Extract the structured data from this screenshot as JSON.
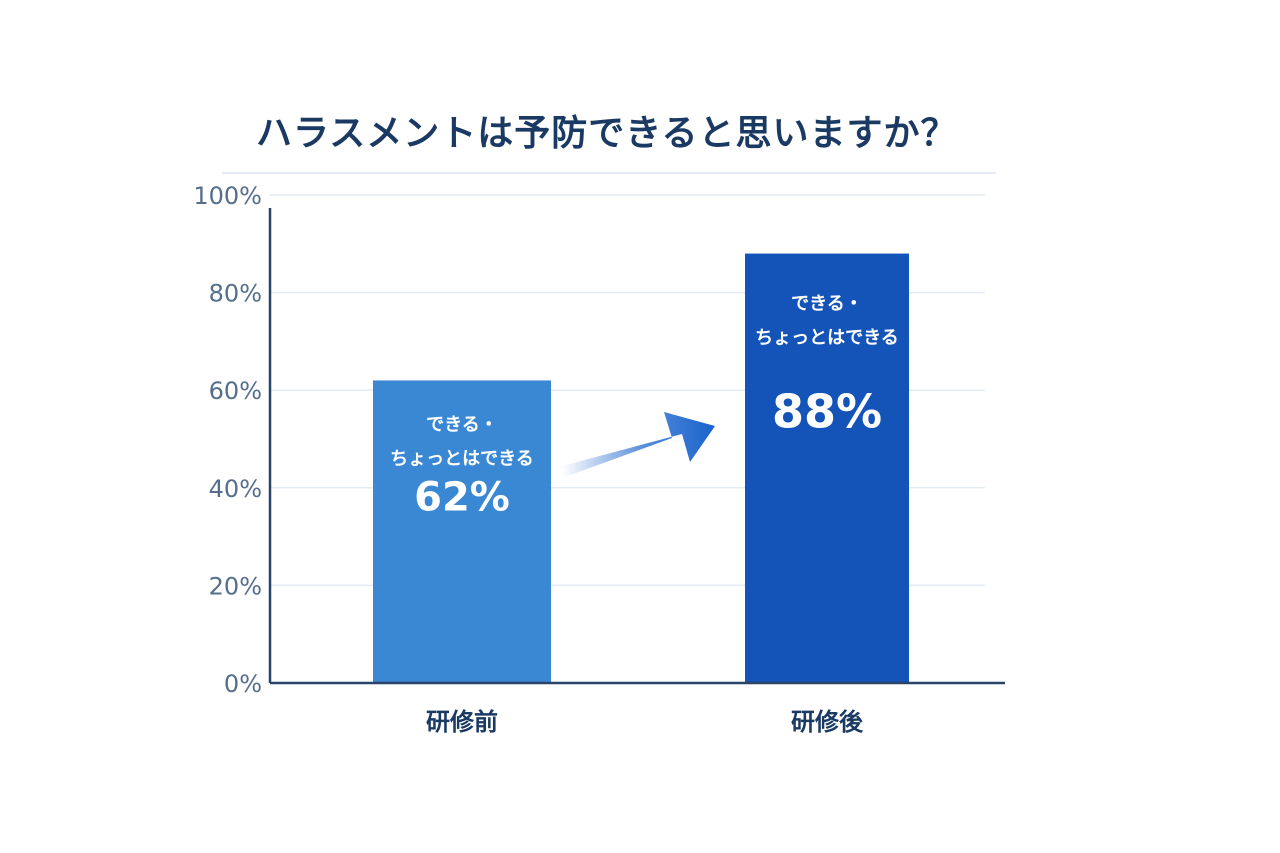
{
  "chart_data": {
    "type": "bar",
    "title": "ハラスメントは予防できると思いますか？",
    "categories": [
      "研修前",
      "研修後"
    ],
    "values": [
      62,
      88
    ],
    "value_labels": [
      "62%",
      "88%"
    ],
    "bar_captions": [
      [
        "できる・",
        "ちょっとはできる"
      ],
      [
        "できる・",
        "ちょっとはできる"
      ]
    ],
    "ylim": [
      0,
      100
    ],
    "yticks": [
      0,
      20,
      40,
      60,
      80,
      100
    ],
    "ytick_labels": [
      "0%",
      "20%",
      "40%",
      "60%",
      "80%",
      "100%"
    ],
    "xlabel": "",
    "ylabel": "",
    "grid": true,
    "legend": "none",
    "annotation": "arrow from 研修前 to 研修後",
    "colors": {
      "bar_before": "#3a87d4",
      "bar_after": "#1454b8",
      "axis": "#2a4468",
      "grid": "#e3eaf3",
      "arrow": "#1a63cc"
    }
  }
}
